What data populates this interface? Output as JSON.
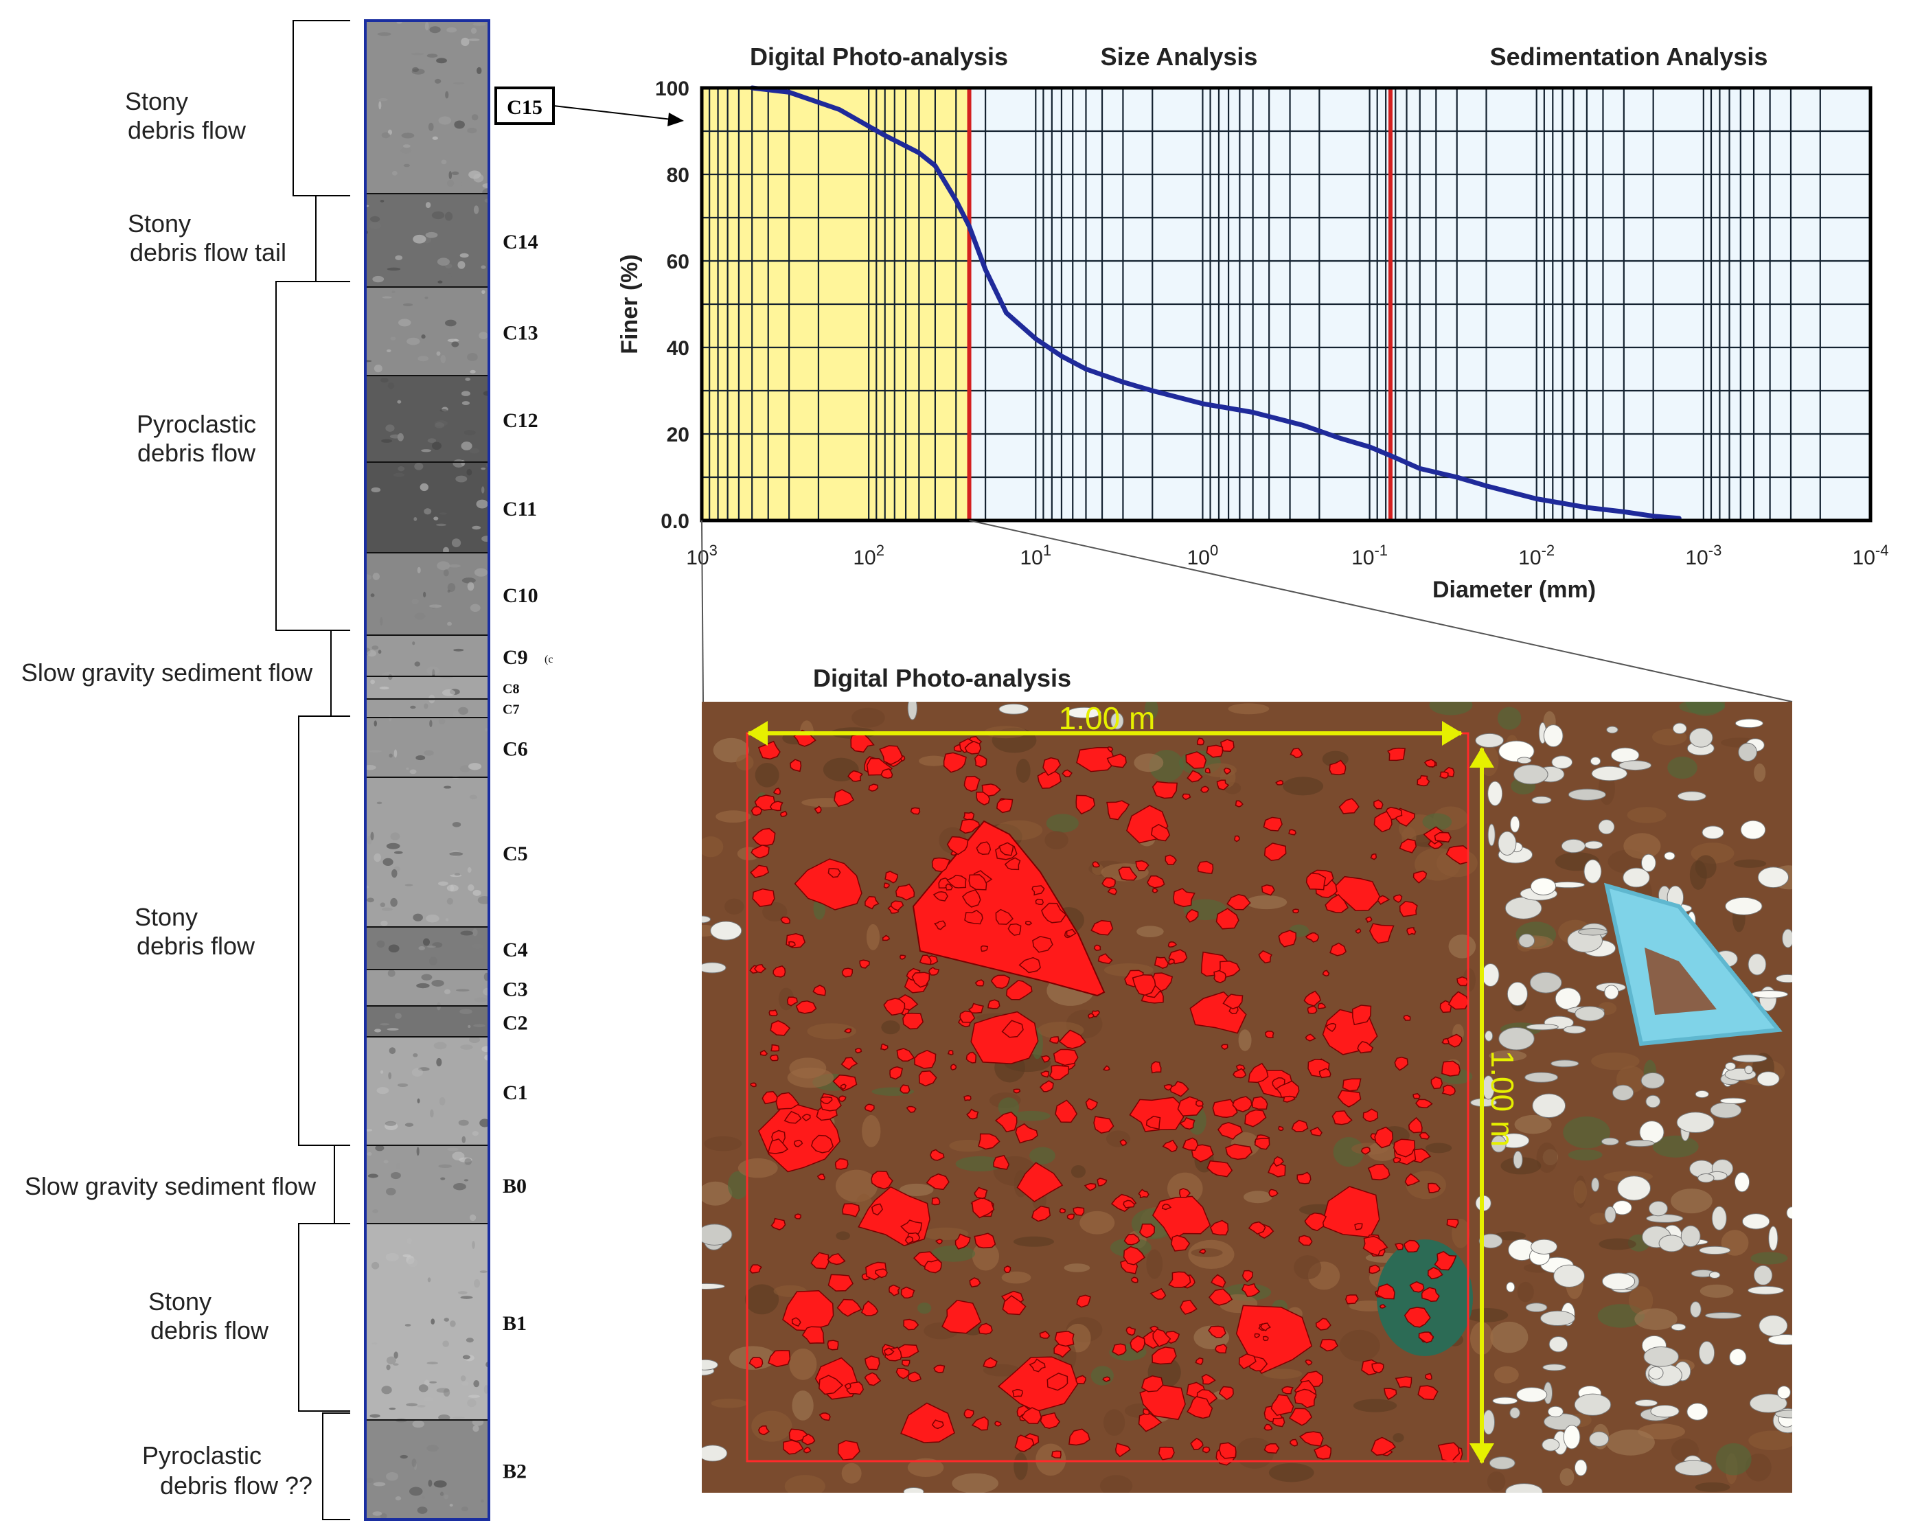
{
  "column": {
    "units": [
      {
        "label": "C15",
        "top": 30,
        "bottom": 282,
        "tone": "#8f8f8f"
      },
      {
        "label": "C14",
        "top": 282,
        "bottom": 418,
        "tone": "#6f6f6f"
      },
      {
        "label": "C13",
        "top": 418,
        "bottom": 547,
        "tone": "#8c8c8c"
      },
      {
        "label": "C12",
        "top": 547,
        "bottom": 673,
        "tone": "#5b5b5b"
      },
      {
        "label": "C11",
        "top": 673,
        "bottom": 805,
        "tone": "#545454"
      },
      {
        "label": "C10",
        "top": 805,
        "bottom": 925,
        "tone": "#888888"
      },
      {
        "label": "C9",
        "top": 925,
        "bottom": 985,
        "tone": "#9a9a9a"
      },
      {
        "label": "C8",
        "top": 985,
        "bottom": 1018,
        "tone": "#a5a5a5"
      },
      {
        "label": "C7",
        "top": 1018,
        "bottom": 1045,
        "tone": "#9d9d9d"
      },
      {
        "label": "C6",
        "top": 1045,
        "bottom": 1132,
        "tone": "#979797"
      },
      {
        "label": "C5",
        "top": 1132,
        "bottom": 1350,
        "tone": "#a2a2a2"
      },
      {
        "label": "C4",
        "top": 1350,
        "bottom": 1412,
        "tone": "#7c7c7c"
      },
      {
        "label": "C3",
        "top": 1412,
        "bottom": 1465,
        "tone": "#9c9c9c"
      },
      {
        "label": "C2",
        "top": 1465,
        "bottom": 1510,
        "tone": "#747474"
      },
      {
        "label": "C1",
        "top": 1510,
        "bottom": 1668,
        "tone": "#a9a9a9"
      },
      {
        "label": "B0",
        "top": 1668,
        "bottom": 1782,
        "tone": "#9a9a9a"
      },
      {
        "label": "B1",
        "top": 1782,
        "bottom": 2068,
        "tone": "#b4b4b4"
      },
      {
        "label": "B2",
        "top": 2068,
        "bottom": 2213,
        "tone": "#8a8a8a"
      }
    ],
    "facies": [
      {
        "text": [
          "Stony",
          "debris flow"
        ]
      },
      {
        "text": [
          "Stony",
          "debris flow tail"
        ]
      },
      {
        "text": [
          "Pyroclastic",
          "debris flow"
        ]
      },
      {
        "text": [
          "Slow gravity sediment flow"
        ]
      },
      {
        "text": [
          "Stony",
          "debris flow"
        ]
      },
      {
        "text": [
          "Slow gravity sediment flow"
        ]
      },
      {
        "text": [
          "Stony",
          "debris flow"
        ]
      },
      {
        "text": [
          "Pyroclastic",
          "debris flow ??"
        ]
      }
    ],
    "c9_suffix": "(c"
  },
  "chart_data": {
    "type": "line",
    "sections": [
      "Digital Photo-analysis",
      "Size Analysis",
      "Sedimentation Analysis"
    ],
    "xlabel": "Diameter (mm)",
    "ylabel": "Finer (%)",
    "x_scale": "log",
    "x_reversed": true,
    "xlim": [
      1000,
      0.0001
    ],
    "ylim": [
      0,
      100
    ],
    "yticks": [
      "0.0",
      "20",
      "40",
      "60",
      "80",
      "100"
    ],
    "xtick_bases": [
      "10",
      "10",
      "10",
      "10",
      "10",
      "10",
      "10",
      "10"
    ],
    "xtick_exps": [
      "3",
      "2",
      "1",
      "0",
      "-1",
      "-2",
      "-3",
      "-4"
    ],
    "boundaries_mm": [
      25,
      0.075
    ],
    "grid": true,
    "series": [
      {
        "color": "#1f2a9a",
        "x": [
          500,
          300,
          150,
          80,
          50,
          40,
          30,
          25,
          20,
          15,
          10,
          7,
          5,
          3,
          2,
          1,
          0.5,
          0.25,
          0.15,
          0.1,
          0.075,
          0.05,
          0.03,
          0.02,
          0.01,
          0.005,
          0.003,
          0.002,
          0.0014
        ],
        "y": [
          100,
          99,
          95,
          89,
          85,
          82,
          74,
          68,
          58,
          48,
          42,
          38,
          35,
          32,
          30,
          27,
          25,
          22,
          19,
          17,
          15,
          12,
          10,
          8,
          5,
          3,
          2,
          1,
          0.5
        ]
      }
    ]
  },
  "photo": {
    "title": "Digital Photo-analysis",
    "scale_h": "1.00 m",
    "scale_v": "1.00 m"
  },
  "callout_label": "C15",
  "colors": {
    "column_border": "#1a2ea0",
    "curve": "#1f2a9a",
    "photo_zone": "#fff59a",
    "plot_bg": "#eef7fd",
    "boundary": "#d42020",
    "clast": "#ff1a1a",
    "scale": "#e6f000"
  }
}
